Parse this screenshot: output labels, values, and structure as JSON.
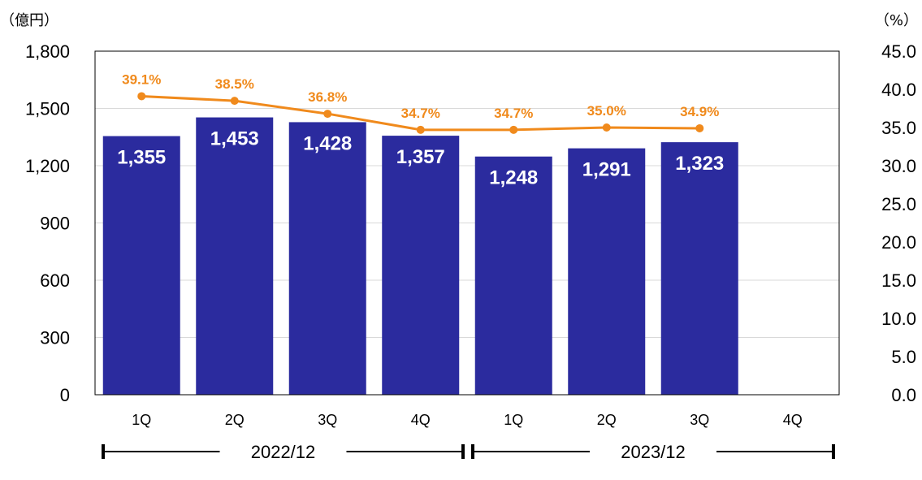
{
  "chart_data": {
    "type": "bar",
    "categories": [
      "1Q",
      "2Q",
      "3Q",
      "4Q",
      "1Q",
      "2Q",
      "3Q",
      "4Q"
    ],
    "groups": [
      {
        "label": "2022/12",
        "from": 0,
        "to": 3
      },
      {
        "label": "2023/12",
        "from": 4,
        "to": 7
      }
    ],
    "series": [
      {
        "type": "bar",
        "axis": "left",
        "values": [
          1355,
          1453,
          1428,
          1357,
          1248,
          1291,
          1323,
          null
        ],
        "labels": [
          "1,355",
          "1,453",
          "1,428",
          "1,357",
          "1,248",
          "1,291",
          "1,323",
          ""
        ],
        "color": "#2b2b9e"
      },
      {
        "type": "line",
        "axis": "right",
        "values": [
          39.1,
          38.5,
          36.8,
          34.7,
          34.7,
          35.0,
          34.9,
          null
        ],
        "labels": [
          "39.1%",
          "38.5%",
          "36.8%",
          "34.7%",
          "34.7%",
          "35.0%",
          "34.9%",
          ""
        ],
        "color": "#f08a1c"
      }
    ],
    "left_axis": {
      "unit": "（億円）",
      "min": 0,
      "max": 1800,
      "ticks": [
        0,
        300,
        600,
        900,
        1200,
        1500,
        1800
      ],
      "tick_labels": [
        "0",
        "300",
        "600",
        "900",
        "1,200",
        "1,500",
        "1,800"
      ]
    },
    "right_axis": {
      "unit": "（%）",
      "min": 0,
      "max": 45,
      "ticks": [
        0,
        5,
        10,
        15,
        20,
        25,
        30,
        35,
        40,
        45
      ],
      "tick_labels": [
        "0.0",
        "5.0",
        "10.0",
        "15.0",
        "20.0",
        "25.0",
        "30.0",
        "35.0",
        "40.0",
        "45.0"
      ]
    },
    "grid": true,
    "colors": {
      "bar": "#2b2b9e",
      "line": "#f08a1c",
      "grid": "#d9d9d9"
    }
  }
}
